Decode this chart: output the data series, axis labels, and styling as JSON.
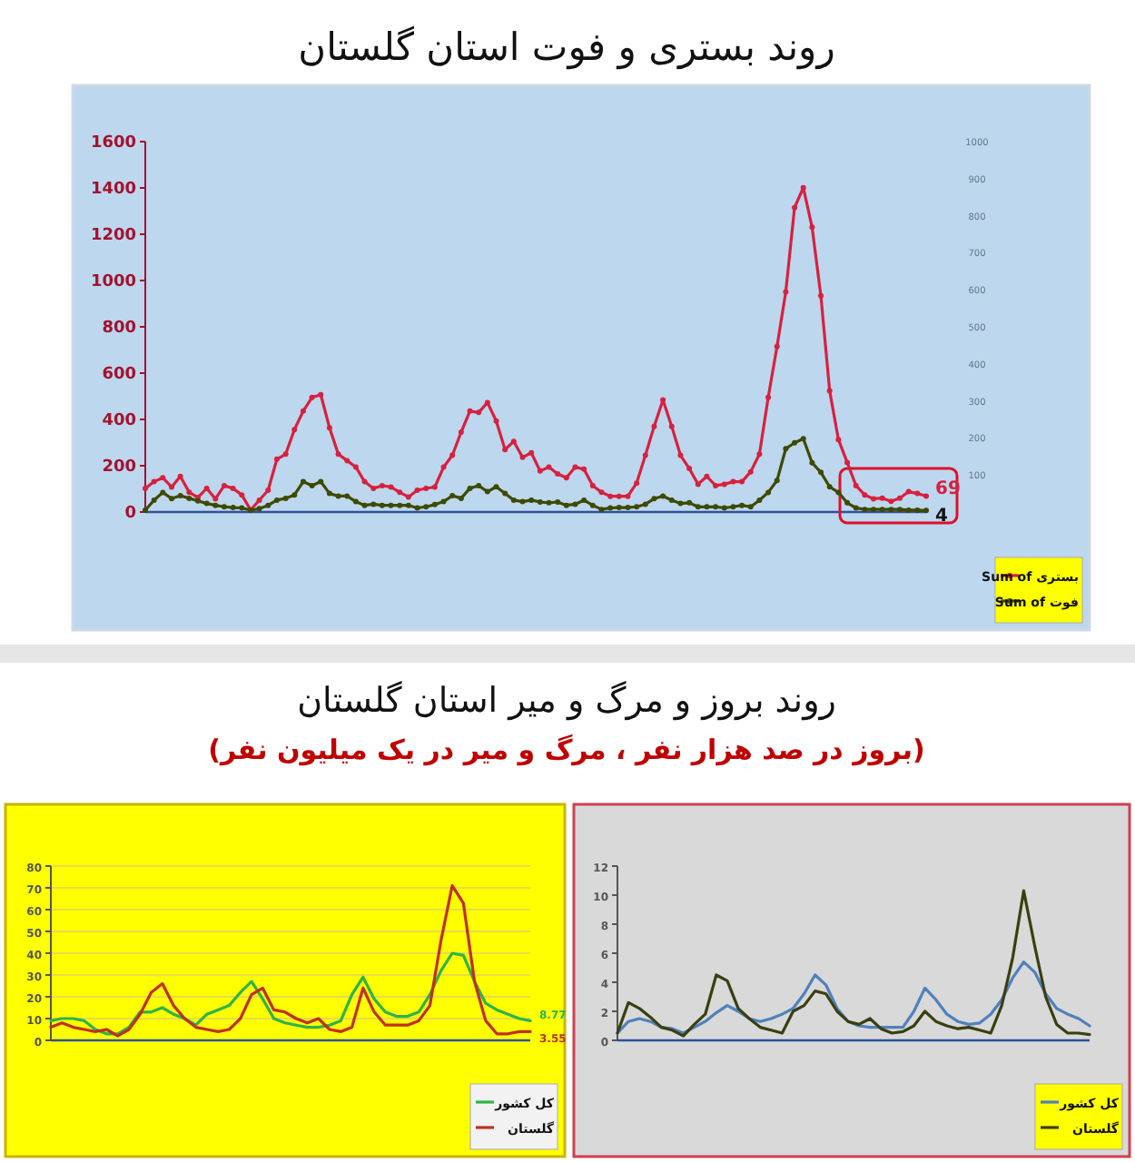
{
  "chart_data": [
    {
      "type": "line",
      "title": "روند بستری و فوت استان گلستان",
      "categories": [
        null,
        null,
        null,
        null,
        null,
        null,
        null,
        null,
        null,
        null,
        null,
        null,
        null,
        null,
        null,
        null,
        null,
        null,
        null,
        null,
        null,
        null,
        null,
        null,
        null,
        null,
        null,
        null,
        null,
        null,
        null,
        null,
        null,
        null,
        null,
        null,
        null,
        null,
        null,
        null,
        null,
        null,
        null,
        null,
        null,
        null,
        null,
        null,
        null,
        null,
        null,
        null,
        null,
        null,
        null,
        null,
        null,
        null,
        null,
        null,
        null,
        null,
        null,
        null,
        null,
        null,
        null,
        null,
        null,
        null,
        null,
        null,
        null,
        null,
        null,
        null,
        null,
        null,
        null,
        null,
        null,
        null,
        null,
        null,
        null,
        null,
        null,
        null,
        null,
        null
      ],
      "series": [
        {
          "name": "Sum of بستری",
          "color": "#d8203f",
          "values": [
            102,
            131,
            148,
            108,
            154,
            85,
            63,
            102,
            57,
            114,
            102,
            74,
            9,
            51,
            94,
            228,
            250,
            356,
            436,
            495,
            507,
            364,
            250,
            222,
            194,
            131,
            102,
            114,
            108,
            85,
            65,
            94,
            102,
            108,
            194,
            245,
            345,
            436,
            430,
            473,
            393,
            270,
            305,
            236,
            256,
            177,
            194,
            165,
            148,
            194,
            185,
            114,
            85,
            68,
            68,
            68,
            125,
            245,
            370,
            484,
            370,
            245,
            188,
            120,
            154,
            114,
            120,
            131,
            131,
            174,
            250,
            495,
            715,
            951,
            1315,
            1401,
            1230,
            934,
            524,
            313,
            214,
            114,
            74,
            57,
            60,
            46,
            60,
            88,
            80,
            69
          ]
        },
        {
          "name": "Sum of فوت",
          "color": "#3d4a00",
          "axis": "y2",
          "values": [
            5,
            32,
            53,
            36,
            44,
            37,
            30,
            23,
            18,
            14,
            12,
            11,
            5,
            9,
            18,
            32,
            37,
            46,
            82,
            71,
            82,
            50,
            43,
            43,
            28,
            18,
            21,
            18,
            18,
            18,
            18,
            11,
            14,
            20,
            28,
            44,
            37,
            64,
            71,
            55,
            68,
            50,
            32,
            28,
            32,
            27,
            25,
            27,
            18,
            21,
            32,
            18,
            7,
            11,
            12,
            12,
            14,
            21,
            36,
            43,
            32,
            23,
            25,
            14,
            14,
            14,
            11,
            14,
            18,
            14,
            32,
            53,
            85,
            171,
            187,
            198,
            133,
            107,
            68,
            53,
            25,
            11,
            7,
            7,
            7,
            7,
            7,
            5,
            5,
            4
          ]
        }
      ],
      "ylim": [
        0,
        1600
      ],
      "yticks": [
        0,
        200,
        400,
        600,
        800,
        1000,
        1200,
        1400,
        1600
      ],
      "y2lim": [
        0,
        1000
      ],
      "y2ticks": [
        100,
        200,
        300,
        400,
        500,
        600,
        700,
        800,
        900,
        1000
      ],
      "marker": "circle",
      "legend": "bottom right",
      "annotations": [
        "69",
        "4"
      ]
    },
    {
      "type": "line",
      "title": "روند بروز و مرگ و میر استان گلستان",
      "subtitle": "(بروز در صد هزار نفر ، مرگ و میر در یک میلیون نفر)",
      "categories": [
        null,
        null,
        null,
        null,
        null,
        null,
        null,
        null,
        null,
        null,
        null,
        null,
        null,
        null,
        null,
        null,
        null,
        null,
        null,
        null,
        null,
        null,
        null,
        null,
        null,
        null,
        null,
        null,
        null,
        null,
        null,
        null,
        null,
        null,
        null,
        null,
        null,
        null,
        null,
        null,
        null,
        null,
        null,
        null
      ],
      "series": [
        {
          "name": "کل کشور",
          "color": "#2fb34a",
          "values": [
            9,
            10,
            10,
            9,
            5,
            3,
            3,
            6,
            13,
            13,
            15,
            12,
            10,
            7,
            12,
            14,
            16,
            22,
            27,
            19,
            10,
            8,
            7,
            6,
            6,
            7,
            9,
            21,
            29,
            19,
            13,
            11,
            11,
            13,
            21,
            32,
            40,
            39,
            27,
            17,
            14,
            12,
            10,
            9
          ]
        },
        {
          "name": "گلستان",
          "color": "#c0301f",
          "values": [
            6,
            8,
            6,
            5,
            4,
            5,
            2,
            5,
            12,
            22,
            26,
            16,
            10,
            6,
            5,
            4,
            5,
            10,
            21,
            24,
            14,
            13,
            10,
            8,
            10,
            5,
            4,
            6,
            24,
            13,
            7,
            7,
            7,
            9,
            16,
            46,
            71,
            63,
            27,
            9,
            3,
            3,
            4,
            4
          ]
        }
      ],
      "ylim": [
        0,
        80
      ],
      "yticks": [
        0,
        10,
        20,
        30,
        40,
        50,
        60,
        70,
        80
      ],
      "grid": "y",
      "legend": "bottom right",
      "annotations": [
        "8.77",
        "3.55"
      ]
    },
    {
      "type": "line",
      "categories": [
        null,
        null,
        null,
        null,
        null,
        null,
        null,
        null,
        null,
        null,
        null,
        null,
        null,
        null,
        null,
        null,
        null,
        null,
        null,
        null,
        null,
        null,
        null,
        null,
        null,
        null,
        null,
        null,
        null,
        null,
        null,
        null,
        null,
        null,
        null,
        null,
        null,
        null,
        null,
        null,
        null,
        null,
        null,
        null
      ],
      "series": [
        {
          "name": "کل کشور",
          "color": "#4f81bd",
          "values": [
            0.5,
            1.3,
            1.5,
            1.3,
            0.9,
            0.8,
            0.5,
            0.9,
            1.3,
            1.9,
            2.4,
            2.0,
            1.5,
            1.3,
            1.5,
            1.8,
            2.2,
            3.2,
            4.5,
            3.8,
            2.2,
            1.3,
            1.0,
            0.9,
            0.9,
            0.9,
            0.9,
            2.0,
            3.6,
            2.8,
            1.8,
            1.3,
            1.1,
            1.2,
            1.8,
            2.8,
            4.3,
            5.4,
            4.7,
            3.2,
            2.2,
            1.8,
            1.5,
            1.0
          ]
        },
        {
          "name": "گلستان",
          "color": "#3a3f10",
          "values": [
            0.5,
            2.6,
            2.2,
            1.6,
            0.9,
            0.7,
            0.3,
            1.1,
            1.8,
            4.5,
            4.1,
            2.2,
            1.5,
            0.9,
            0.7,
            0.5,
            2.0,
            2.4,
            3.4,
            3.2,
            2.0,
            1.3,
            1.1,
            1.5,
            0.8,
            0.5,
            0.6,
            1.0,
            2.0,
            1.3,
            1.0,
            0.8,
            0.9,
            0.7,
            0.5,
            2.4,
            5.7,
            10.3,
            6.5,
            3.0,
            1.1,
            0.5,
            0.5,
            0.4
          ]
        }
      ],
      "ylim": [
        0,
        12
      ],
      "yticks": [
        0,
        2,
        4,
        6,
        8,
        10,
        12
      ],
      "legend": "bottom right"
    }
  ]
}
